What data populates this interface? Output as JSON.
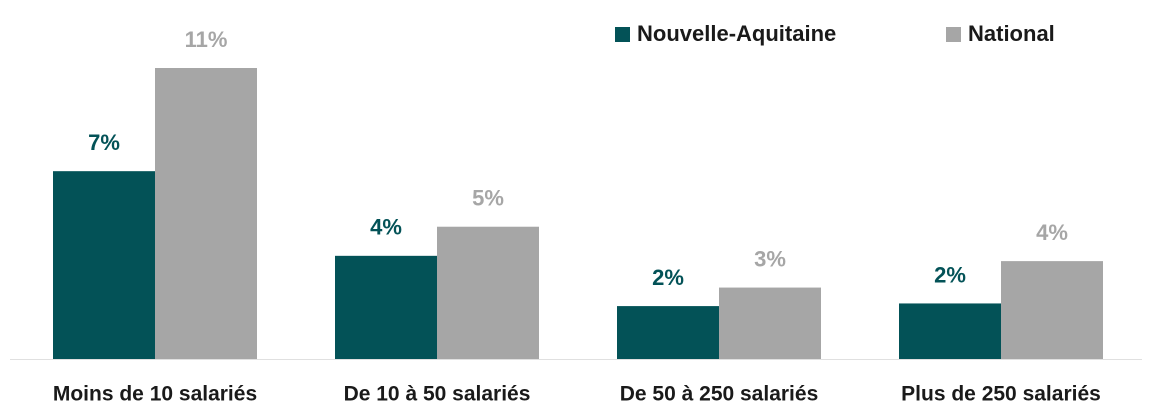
{
  "chart_data": {
    "type": "bar",
    "categories": [
      "Moins de 10 salariés",
      "De 10 à 50 salariés",
      "De 50 à 250 salariés",
      "Plus de 250 salariés"
    ],
    "series": [
      {
        "name": "Nouvelle-Aquitaine",
        "color": "#035257",
        "values": [
          7.1,
          3.9,
          2.0,
          2.1
        ],
        "value_labels": [
          "7%",
          "4%",
          "2%",
          "2%"
        ]
      },
      {
        "name": "National",
        "color": "#a6a6a6",
        "values": [
          11,
          5.0,
          2.7,
          3.7
        ],
        "value_labels": [
          "11%",
          "5%",
          "3%",
          "4%"
        ]
      }
    ],
    "legend": "top-right"
  }
}
